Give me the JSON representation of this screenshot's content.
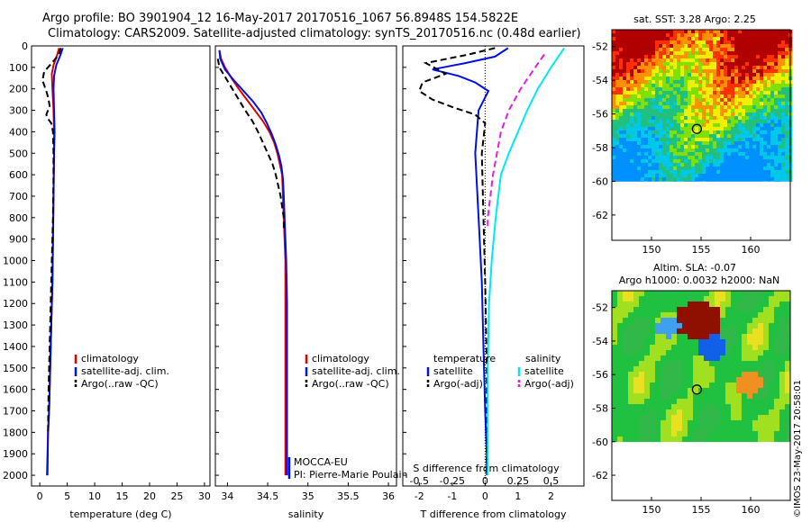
{
  "header": {
    "line1": "Argo profile: BO 3901904_12 16-May-2017 20170516_1067 56.8948S 154.5822E",
    "line2": "Climatology: CARS2009. Satellite-adjusted climatology: synTS_20170516.nc (0.48d earlier)"
  },
  "footer_stamp": "©IMOS 23-May-2017 20:58:01",
  "colors": {
    "climatology": "#e00000",
    "satellite": "#0010e0",
    "argo": "#000000",
    "sat_salinity": "#00e8f0",
    "argo_adj_salinity": "#e020e0"
  },
  "chart_data": [
    {
      "type": "line",
      "id": "temperature",
      "xlabel": "temperature (deg C)",
      "ylabel": "",
      "xlim": [
        -1.5,
        31
      ],
      "ylim": [
        2050,
        0
      ],
      "xticks": [
        0,
        5,
        10,
        15,
        20,
        25,
        30
      ],
      "yticks": [
        0,
        100,
        200,
        300,
        400,
        500,
        600,
        700,
        800,
        900,
        1000,
        1100,
        1200,
        1300,
        1400,
        1500,
        1600,
        1700,
        1800,
        1900,
        2000
      ],
      "legend": [
        "climatology",
        "satellite-adj. clim.",
        "Argo(..raw -QC)"
      ],
      "series": [
        {
          "name": "climatology",
          "style": "solid",
          "color": "#e00000",
          "x": [
            3.5,
            3.2,
            2.5,
            2.2,
            2.3,
            2.5,
            2.6,
            2.6,
            2.5,
            2.4,
            2.3,
            2.1,
            1.9,
            1.7,
            1.5,
            1.4,
            1.3
          ],
          "y": [
            10,
            40,
            90,
            130,
            200,
            300,
            400,
            500,
            700,
            900,
            1100,
            1300,
            1500,
            1700,
            1800,
            1900,
            2000
          ]
        },
        {
          "name": "satellite-adj. clim.",
          "style": "solid",
          "color": "#0010e0",
          "x": [
            4.2,
            3.8,
            3.0,
            2.6,
            2.5,
            2.6,
            2.7,
            2.6,
            2.5,
            2.4,
            2.3,
            2.1,
            1.9,
            1.7,
            1.5,
            1.4
          ],
          "y": [
            10,
            40,
            90,
            140,
            200,
            300,
            400,
            500,
            700,
            900,
            1100,
            1300,
            1500,
            1700,
            1800,
            2000
          ]
        },
        {
          "name": "Argo(..raw -QC)",
          "style": "dashed",
          "color": "#000000",
          "x": [
            3.8,
            3.5,
            2.2,
            0.8,
            0.5,
            0.9,
            1.3,
            1.6,
            1.8,
            1.5,
            1.2,
            1.5,
            2.1,
            2.4,
            2.5,
            2.5,
            2.4,
            2.2,
            2.0,
            1.8,
            1.6,
            1.5
          ],
          "y": [
            10,
            40,
            80,
            120,
            160,
            190,
            220,
            250,
            280,
            300,
            320,
            340,
            360,
            400,
            500,
            600,
            800,
            1000,
            1200,
            1400,
            1600,
            1800
          ]
        }
      ]
    },
    {
      "type": "line",
      "id": "salinity",
      "xlabel": "salinity",
      "ylabel": "",
      "xlim": [
        33.85,
        36.1
      ],
      "ylim": [
        2050,
        0
      ],
      "xticks": [
        34,
        34.5,
        35,
        35.5,
        36
      ],
      "legend": [
        "climatology",
        "satellite-adj. clim.",
        "Argo(..raw -QC)"
      ],
      "annotations": [
        "MOCCA-EU",
        "PI: Pierre-Marie Poulain"
      ],
      "series": [
        {
          "name": "climatology",
          "style": "solid",
          "color": "#e00000",
          "x": [
            33.9,
            33.92,
            33.97,
            34.05,
            34.14,
            34.24,
            34.34,
            34.44,
            34.52,
            34.58,
            34.62,
            34.65,
            34.68,
            34.69,
            34.7,
            34.71,
            34.72,
            34.72,
            34.72,
            34.72,
            34.72
          ],
          "y": [
            20,
            60,
            100,
            150,
            200,
            250,
            300,
            350,
            400,
            450,
            500,
            550,
            600,
            700,
            800,
            900,
            1000,
            1200,
            1500,
            1800,
            2000
          ]
        },
        {
          "name": "satellite-adj. clim.",
          "style": "solid",
          "color": "#0010e0",
          "x": [
            33.9,
            33.91,
            33.97,
            34.08,
            34.2,
            34.32,
            34.42,
            34.49,
            34.55,
            34.6,
            34.64,
            34.67,
            34.69,
            34.7,
            34.71,
            34.72,
            34.73,
            34.74,
            34.74,
            34.74,
            34.74
          ],
          "y": [
            20,
            60,
            110,
            160,
            210,
            260,
            310,
            360,
            410,
            460,
            510,
            560,
            620,
            700,
            800,
            900,
            1000,
            1200,
            1500,
            1800,
            2000
          ]
        },
        {
          "name": "Argo(..raw -QC)",
          "style": "dashed",
          "color": "#000000",
          "x": [
            33.88,
            33.9,
            33.98,
            34.06,
            34.14,
            34.22,
            34.31,
            34.38,
            34.44,
            34.5,
            34.56,
            34.6,
            34.63,
            34.66,
            34.68,
            34.7,
            34.7
          ],
          "y": [
            60,
            100,
            150,
            200,
            250,
            300,
            350,
            400,
            450,
            500,
            550,
            600,
            650,
            700,
            750,
            800,
            850
          ]
        }
      ]
    },
    {
      "type": "line",
      "id": "differences",
      "xlabel": "T difference from climatology",
      "x2label": "S difference from climatology",
      "xlim": [
        -2.5,
        3
      ],
      "x2lim": [
        -0.625,
        0.75
      ],
      "ylim": [
        2050,
        0
      ],
      "xticks": [
        -2,
        -1,
        0,
        1,
        2
      ],
      "x2ticks": [
        -0.5,
        -0.25,
        0,
        0.25,
        0.5
      ],
      "x2ticklabels": [
        "-0.5",
        "-0.25",
        "0",
        "0.25",
        "0.5"
      ],
      "legend_titles": [
        "temperature",
        "salinity"
      ],
      "legend": [
        "satellite",
        "Argo(-adj)",
        "satellite",
        "Argo(-adj)"
      ],
      "series": [
        {
          "name": "satellite",
          "group": "temperature",
          "style": "solid",
          "color": "#0010e0",
          "x": [
            0.7,
            0.3,
            -0.6,
            -1.6,
            -0.8,
            -0.3,
            0.1,
            -0.2,
            -0.3,
            -0.2,
            -0.1,
            -0.05,
            0,
            0.05,
            0.05
          ],
          "y": [
            10,
            50,
            80,
            110,
            140,
            170,
            210,
            300,
            500,
            800,
            1100,
            1400,
            1700,
            1900,
            2000
          ]
        },
        {
          "name": "Argo(-adj)",
          "group": "temperature",
          "style": "dashed",
          "color": "#000000",
          "x": [
            0.3,
            -0.5,
            -1.8,
            -1.2,
            -1.9,
            -2.0,
            -1.6,
            -0.9,
            -0.3,
            0.0,
            -0.1,
            -0.05,
            0.0,
            0.05,
            0.05
          ],
          "y": [
            10,
            40,
            80,
            130,
            170,
            210,
            250,
            290,
            320,
            360,
            500,
            800,
            1100,
            1500,
            2000
          ]
        },
        {
          "name": "satellite",
          "group": "salinity",
          "style": "solid",
          "color": "#00e8f0",
          "x": [
            0.6,
            0.5,
            0.4,
            0.32,
            0.25,
            0.18,
            0.12,
            0.08,
            0.05,
            0.03,
            0.02,
            0.02,
            0.02
          ],
          "y": [
            10,
            100,
            200,
            300,
            400,
            500,
            600,
            800,
            1000,
            1200,
            1500,
            1800,
            2000
          ]
        },
        {
          "name": "Argo(-adj)",
          "group": "salinity",
          "style": "dashed",
          "color": "#e020e0",
          "x": [
            0.45,
            0.38,
            0.27,
            0.18,
            0.12,
            0.09,
            0.06,
            0.04,
            0.02,
            0.02
          ],
          "y": [
            40,
            100,
            200,
            300,
            400,
            500,
            600,
            700,
            800,
            850
          ]
        }
      ]
    },
    {
      "type": "heatmap",
      "id": "sst_map",
      "title": "sat. SST: 3.28 Argo: 2.25",
      "xlim": [
        146,
        164
      ],
      "ylim": [
        -63.5,
        -51
      ],
      "xticks": [
        150,
        155,
        160
      ],
      "yticks": [
        -52,
        -54,
        -56,
        -58,
        -60,
        -62
      ],
      "data_extent_lat": [
        -60,
        -51
      ],
      "marker": {
        "lon": 154.58,
        "lat": -56.89
      }
    },
    {
      "type": "heatmap",
      "id": "sla_map",
      "title": "Altim. SLA: -0.07",
      "subtitle": "Argo h1000: 0.0032 h2000: NaN",
      "xlim": [
        146,
        164
      ],
      "ylim": [
        -63.5,
        -51
      ],
      "xticks": [
        150,
        155,
        160
      ],
      "yticks": [
        -52,
        -54,
        -56,
        -58,
        -60,
        -62
      ],
      "data_extent_lat": [
        -60,
        -51
      ],
      "marker": {
        "lon": 154.58,
        "lat": -56.89
      }
    }
  ]
}
